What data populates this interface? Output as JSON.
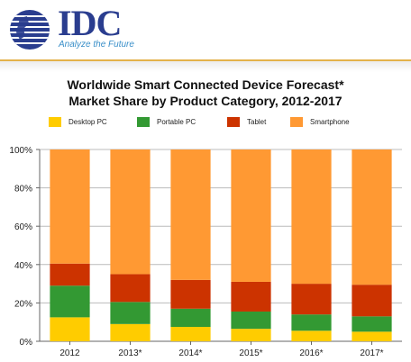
{
  "header": {
    "logo_text": "IDC",
    "tagline": "Analyze the Future"
  },
  "chart_data": {
    "type": "bar",
    "stacked": true,
    "title": "Worldwide Smart Connected Device Forecast*",
    "subtitle": "Market Share by Product Category, 2012-2017",
    "categories": [
      "2012",
      "2013*",
      "2014*",
      "2015*",
      "2016*",
      "2017*"
    ],
    "series": [
      {
        "name": "Desktop PC",
        "color": "#ffcc00",
        "values": [
          12.5,
          9.0,
          7.5,
          6.5,
          5.5,
          5.0
        ]
      },
      {
        "name": "Portable PC",
        "color": "#339933",
        "values": [
          16.5,
          11.5,
          9.5,
          9.0,
          8.5,
          8.0
        ]
      },
      {
        "name": "Tablet",
        "color": "#cc3300",
        "values": [
          11.5,
          14.5,
          15.0,
          15.5,
          16.0,
          16.5
        ]
      },
      {
        "name": "Smartphone",
        "color": "#ff9933",
        "values": [
          59.5,
          65.0,
          68.0,
          69.0,
          70.0,
          70.5
        ]
      }
    ],
    "ylim": [
      0,
      100
    ],
    "yticks": [
      "0%",
      "20%",
      "40%",
      "60%",
      "80%",
      "100%"
    ],
    "ytick_values": [
      0,
      20,
      40,
      60,
      80,
      100
    ],
    "grid": true,
    "legend_placement": "top"
  }
}
